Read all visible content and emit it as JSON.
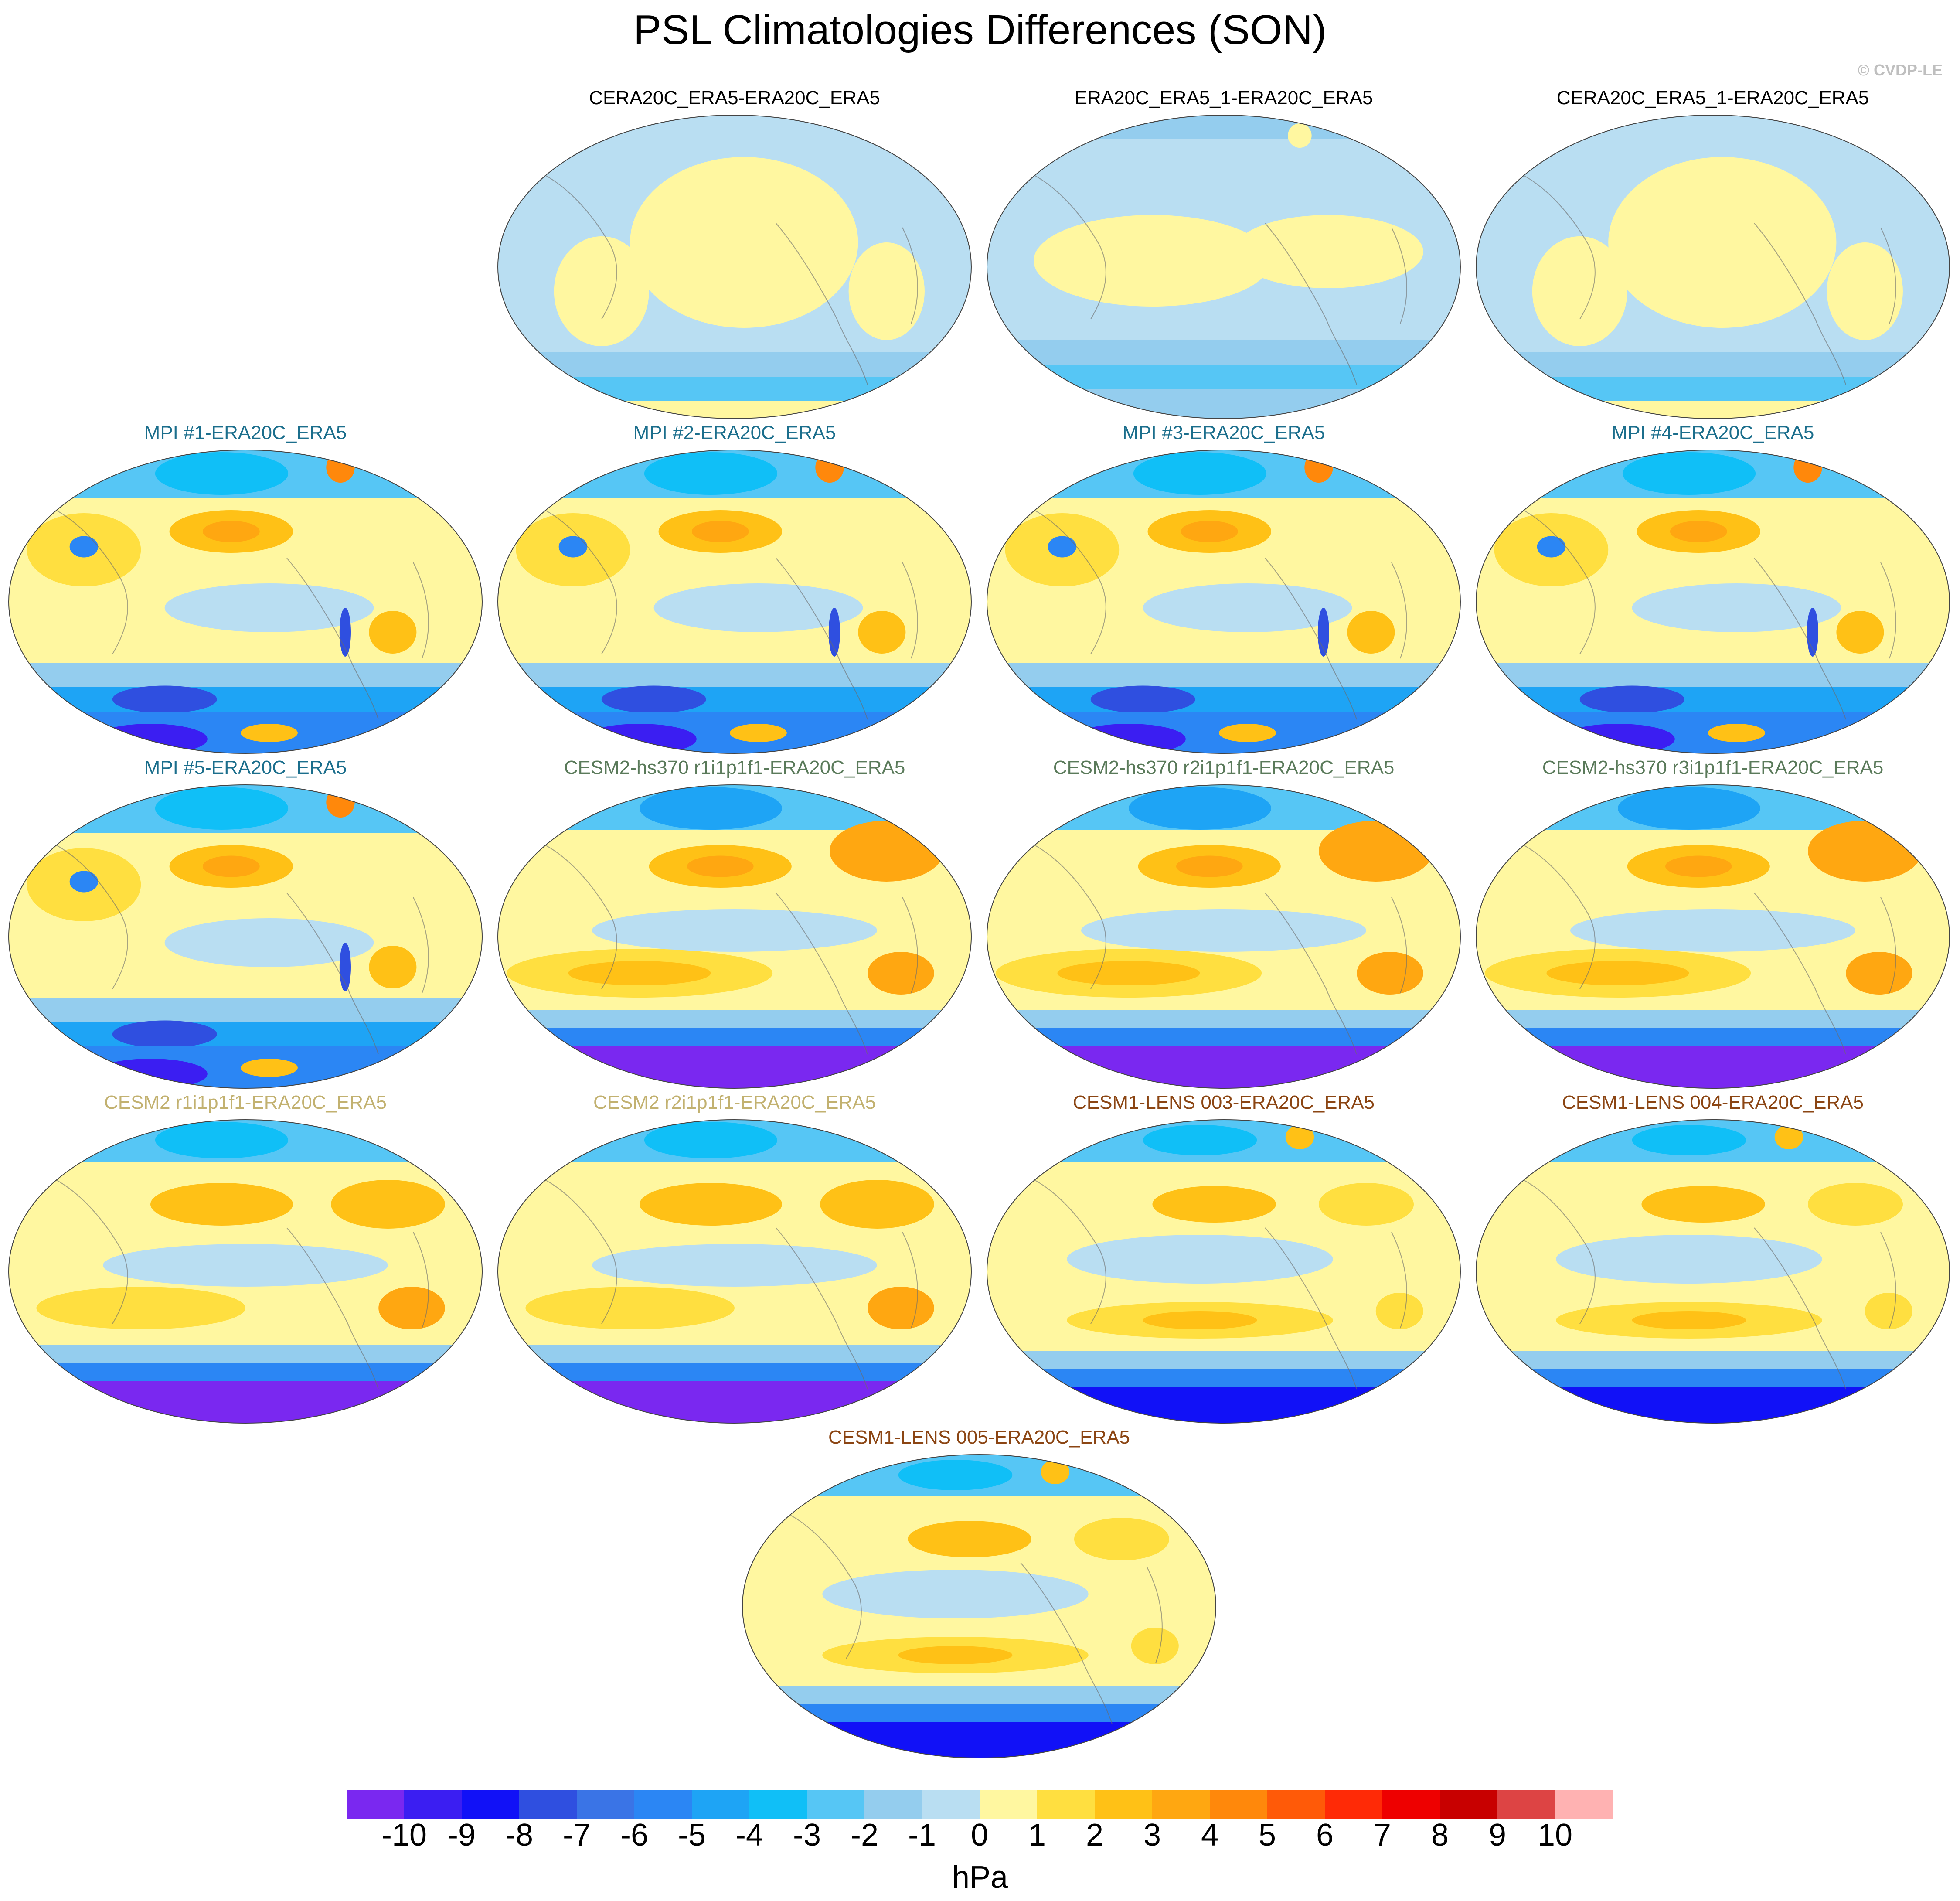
{
  "title": "PSL Climatologies Differences (SON)",
  "copyright": "© CVDP-LE",
  "colors": {
    "obs": "#000000",
    "mpi": "#1b6e8c",
    "cesm2hs": "#5a7a5a",
    "cesm2": "#c2b170",
    "lens": "#8b4513"
  },
  "panels": [
    {
      "row": 0,
      "col": 1,
      "title": "CERA20C_ERA5-ERA20C_ERA5",
      "group": "obs",
      "pattern": "obs1"
    },
    {
      "row": 0,
      "col": 2,
      "title": "ERA20C_ERA5_1-ERA20C_ERA5",
      "group": "obs",
      "pattern": "obs2"
    },
    {
      "row": 0,
      "col": 3,
      "title": "CERA20C_ERA5_1-ERA20C_ERA5",
      "group": "obs",
      "pattern": "obs1"
    },
    {
      "row": 1,
      "col": 0,
      "title": "MPI #1-ERA20C_ERA5",
      "group": "mpi",
      "pattern": "mpi"
    },
    {
      "row": 1,
      "col": 1,
      "title": "MPI #2-ERA20C_ERA5",
      "group": "mpi",
      "pattern": "mpi"
    },
    {
      "row": 1,
      "col": 2,
      "title": "MPI #3-ERA20C_ERA5",
      "group": "mpi",
      "pattern": "mpi"
    },
    {
      "row": 1,
      "col": 3,
      "title": "MPI #4-ERA20C_ERA5",
      "group": "mpi",
      "pattern": "mpi"
    },
    {
      "row": 2,
      "col": 0,
      "title": "MPI #5-ERA20C_ERA5",
      "group": "mpi",
      "pattern": "mpi"
    },
    {
      "row": 2,
      "col": 1,
      "title": "CESM2-hs370 r1i1p1f1-ERA20C_ERA5",
      "group": "cesm2hs",
      "pattern": "cesm2hs"
    },
    {
      "row": 2,
      "col": 2,
      "title": "CESM2-hs370 r2i1p1f1-ERA20C_ERA5",
      "group": "cesm2hs",
      "pattern": "cesm2hs"
    },
    {
      "row": 2,
      "col": 3,
      "title": "CESM2-hs370 r3i1p1f1-ERA20C_ERA5",
      "group": "cesm2hs",
      "pattern": "cesm2hs"
    },
    {
      "row": 3,
      "col": 0,
      "title": "CESM2 r1i1p1f1-ERA20C_ERA5",
      "group": "cesm2",
      "pattern": "cesm2"
    },
    {
      "row": 3,
      "col": 1,
      "title": "CESM2 r2i1p1f1-ERA20C_ERA5",
      "group": "cesm2",
      "pattern": "cesm2"
    },
    {
      "row": 3,
      "col": 2,
      "title": "CESM1-LENS 003-ERA20C_ERA5",
      "group": "lens",
      "pattern": "lens"
    },
    {
      "row": 3,
      "col": 3,
      "title": "CESM1-LENS 004-ERA20C_ERA5",
      "group": "lens",
      "pattern": "lens"
    },
    {
      "row": 4,
      "col": 1.5,
      "title": "CESM1-LENS 005-ERA20C_ERA5",
      "group": "lens",
      "pattern": "lens"
    }
  ],
  "colorbar": {
    "colors": [
      "#7a28f0",
      "#3b1ef2",
      "#1111f7",
      "#2f4fe0",
      "#3a74e6",
      "#2b86f4",
      "#1ea4f5",
      "#10bff7",
      "#56c6f5",
      "#94cdee",
      "#b9def2",
      "#fff7a0",
      "#ffdf40",
      "#ffc116",
      "#ffa711",
      "#ff880b",
      "#ff5a08",
      "#ff2a06",
      "#ee0000",
      "#c80000",
      "#dd4444",
      "#ffb2b2"
    ],
    "labels": [
      "-10",
      "-9",
      "-8",
      "-7",
      "-6",
      "-5",
      "-4",
      "-3",
      "-2",
      "-1",
      "0",
      "1",
      "2",
      "3",
      "4",
      "5",
      "6",
      "7",
      "8",
      "9",
      "10"
    ],
    "units": "hPa"
  }
}
